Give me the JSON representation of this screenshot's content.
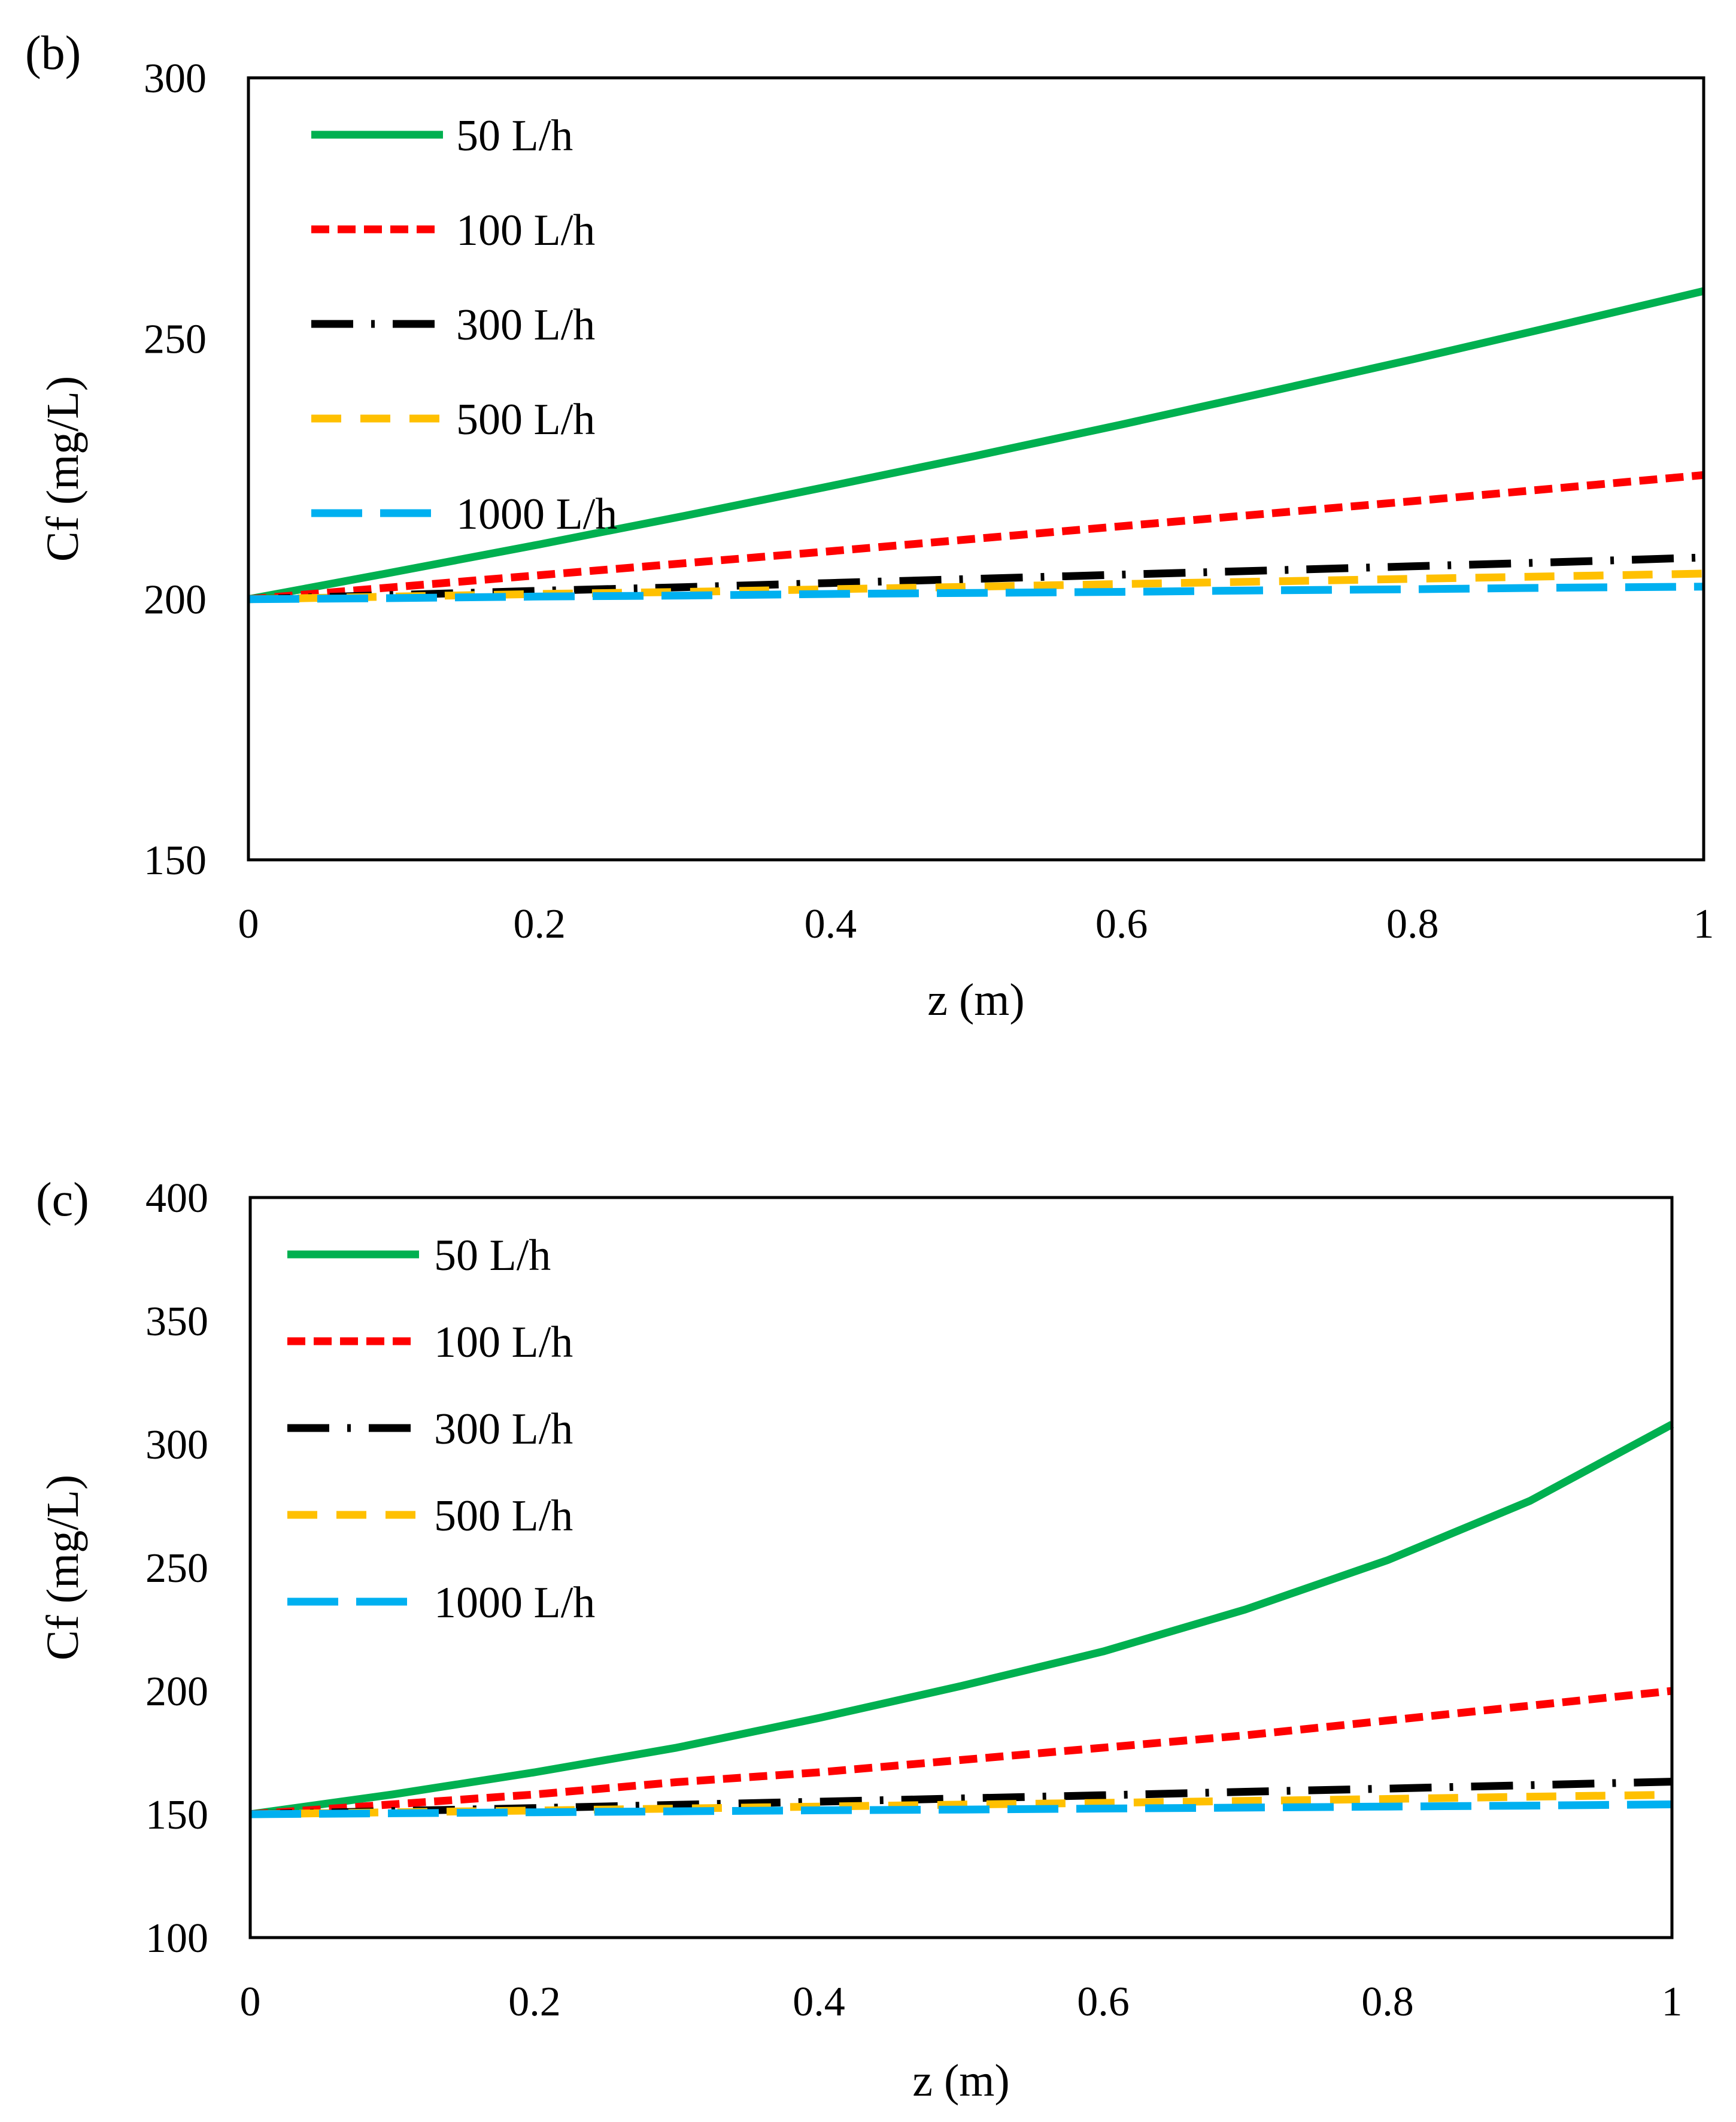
{
  "chart_data": [
    {
      "type": "line",
      "panel_label": "(b)",
      "xlabel": "z (m)",
      "ylabel": "Cf (mg/L)",
      "xlim": [
        0,
        1
      ],
      "ylim": [
        150,
        300
      ],
      "x_ticks": [
        0,
        0.2,
        0.4,
        0.6,
        0.8,
        1
      ],
      "x_tick_labels": [
        "0",
        "0.2",
        "0.4",
        "0.6",
        "0.8",
        "1"
      ],
      "y_ticks": [
        150,
        200,
        250,
        300
      ],
      "y_tick_labels": [
        "150",
        "200",
        "250",
        "300"
      ],
      "grid": false,
      "legend_position": "top-left",
      "x": [
        0,
        0.1,
        0.2,
        0.3,
        0.4,
        0.5,
        0.6,
        0.7,
        0.8,
        0.9,
        1.0
      ],
      "series": [
        {
          "name": "50 L/h",
          "color": "#00b050",
          "dash": "solid",
          "values": [
            200,
            205.2,
            210.5,
            216.0,
            221.7,
            227.5,
            233.5,
            239.7,
            246.0,
            252.5,
            259.1
          ]
        },
        {
          "name": "100 L/h",
          "color": "#ff0000",
          "dash": "short-dash",
          "values": [
            200,
            202.3,
            204.6,
            206.9,
            209.2,
            211.6,
            214.0,
            216.4,
            218.8,
            221.3,
            223.8
          ]
        },
        {
          "name": "300 L/h",
          "color": "#000000",
          "dash": "long-dash-dot",
          "values": [
            200,
            200.8,
            201.6,
            202.3,
            203.1,
            203.9,
            204.7,
            205.5,
            206.3,
            207.1,
            208.0
          ]
        },
        {
          "name": "500 L/h",
          "color": "#ffc000",
          "dash": "dash",
          "values": [
            200,
            200.5,
            201.0,
            201.4,
            201.9,
            202.4,
            202.9,
            203.4,
            203.9,
            204.4,
            204.9
          ]
        },
        {
          "name": "1000 L/h",
          "color": "#00b0f0",
          "dash": "long-dash",
          "values": [
            200,
            200.2,
            200.5,
            200.7,
            201.0,
            201.2,
            201.4,
            201.7,
            201.9,
            202.2,
            202.4
          ]
        }
      ]
    },
    {
      "type": "line",
      "panel_label": "(c)",
      "xlabel": "z (m)",
      "ylabel": "Cf (mg/L)",
      "xlim": [
        0,
        1
      ],
      "ylim": [
        100,
        400
      ],
      "x_ticks": [
        0,
        0.2,
        0.4,
        0.6,
        0.8,
        1
      ],
      "x_tick_labels": [
        "0",
        "0.2",
        "0.4",
        "0.6",
        "0.8",
        "1"
      ],
      "y_ticks": [
        100,
        150,
        200,
        250,
        300,
        350,
        400
      ],
      "y_tick_labels": [
        "100",
        "150",
        "200",
        "250",
        "300",
        "350",
        "400"
      ],
      "grid": false,
      "legend_position": "top-left",
      "x": [
        0,
        0.1,
        0.2,
        0.3,
        0.4,
        0.5,
        0.6,
        0.7,
        0.8,
        0.9,
        1.0
      ],
      "series": [
        {
          "name": "50 L/h",
          "color": "#00b050",
          "dash": "solid",
          "values": [
            150,
            158,
            167,
            177,
            189,
            202,
            216,
            233,
            253,
            277,
            308
          ]
        },
        {
          "name": "100 L/h",
          "color": "#ff0000",
          "dash": "short-dash",
          "values": [
            150,
            154,
            158,
            163,
            167,
            172,
            177,
            182,
            188,
            194,
            200
          ]
        },
        {
          "name": "300 L/h",
          "color": "#000000",
          "dash": "long-dash-dot",
          "values": [
            150,
            151.3,
            152.5,
            153.8,
            155.1,
            156.4,
            157.7,
            159.1,
            160.4,
            161.8,
            163.2
          ]
        },
        {
          "name": "500 L/h",
          "color": "#ffc000",
          "dash": "dash",
          "values": [
            150,
            150.8,
            151.5,
            152.3,
            153.1,
            153.9,
            154.6,
            155.4,
            156.2,
            157.1,
            157.9
          ]
        },
        {
          "name": "1000 L/h",
          "color": "#00b0f0",
          "dash": "long-dash",
          "values": [
            150,
            150.4,
            150.8,
            151.2,
            151.6,
            151.9,
            152.3,
            152.7,
            153.1,
            153.5,
            154.0
          ]
        }
      ]
    }
  ]
}
